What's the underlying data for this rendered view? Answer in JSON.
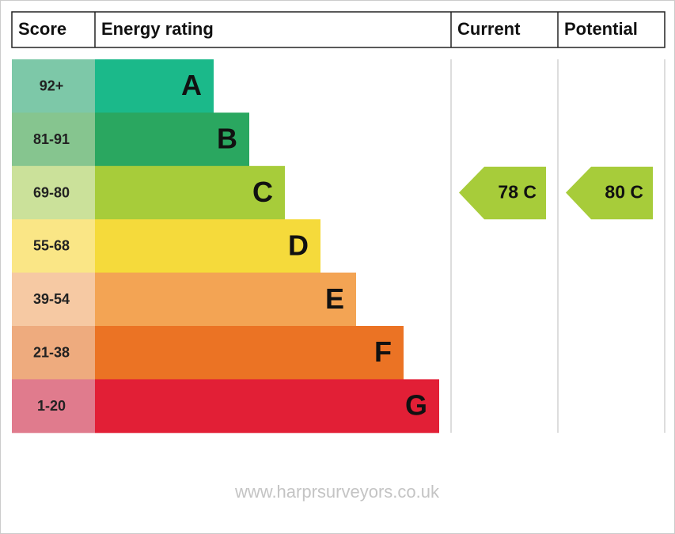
{
  "header": {
    "score": "Score",
    "energy_rating": "Energy rating",
    "current": "Current",
    "potential": "Potential"
  },
  "bands": [
    {
      "score": "92+",
      "letter": "A",
      "color": "#1bb98a",
      "score_color": "#7dc8a8"
    },
    {
      "score": "81-91",
      "letter": "B",
      "color": "#2aa760",
      "score_color": "#86c58f"
    },
    {
      "score": "69-80",
      "letter": "C",
      "color": "#a7cc3a",
      "score_color": "#cbe19a",
      "current": "78 C",
      "potential": "80 C"
    },
    {
      "score": "55-68",
      "letter": "D",
      "color": "#f5da3b",
      "score_color": "#fae686"
    },
    {
      "score": "39-54",
      "letter": "E",
      "color": "#f3a454",
      "score_color": "#f6c9a3"
    },
    {
      "score": "21-38",
      "letter": "F",
      "color": "#eb7324",
      "score_color": "#eeab7e"
    },
    {
      "score": "1-20",
      "letter": "G",
      "color": "#e21f36",
      "score_color": "#e07b8d"
    }
  ],
  "footer": "www.harprsurveyors.co.uk"
}
